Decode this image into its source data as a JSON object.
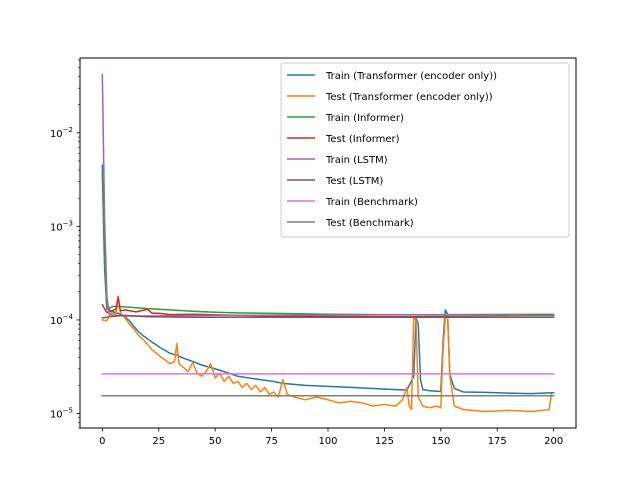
{
  "chart_data": {
    "type": "line",
    "yscale": "log",
    "xlim": [
      -9.9,
      209.9
    ],
    "ylim": [
      7e-06,
      0.063
    ],
    "xticks": [
      0,
      25,
      50,
      75,
      100,
      125,
      150,
      175,
      200
    ],
    "yticks": [
      {
        "value": 1e-05,
        "base": "10",
        "exp": "−5"
      },
      {
        "value": 0.0001,
        "base": "10",
        "exp": "−4"
      },
      {
        "value": 0.001,
        "base": "10",
        "exp": "−3"
      },
      {
        "value": 0.01,
        "base": "10",
        "exp": "−2"
      }
    ],
    "legend_position": "top-right",
    "grid": false,
    "series": [
      {
        "name": "Train (Transformer (encoder only))",
        "color": "#1f77b4",
        "points": [
          [
            0,
            0.0045
          ],
          [
            1,
            0.00045
          ],
          [
            2,
            0.00014
          ],
          [
            3,
            0.000128
          ],
          [
            5,
            0.000122
          ],
          [
            8,
            0.000115
          ],
          [
            10,
            0.000108
          ],
          [
            12,
            9.8e-05
          ],
          [
            14,
            8.5e-05
          ],
          [
            16,
            7.5e-05
          ],
          [
            18,
            6.8e-05
          ],
          [
            20,
            6.3e-05
          ],
          [
            22,
            5.8e-05
          ],
          [
            24,
            5.4e-05
          ],
          [
            26,
            5e-05
          ],
          [
            28,
            4.7e-05
          ],
          [
            30,
            4.4e-05
          ],
          [
            33,
            4.2e-05
          ],
          [
            36,
            3.9e-05
          ],
          [
            40,
            3.6e-05
          ],
          [
            44,
            3.3e-05
          ],
          [
            48,
            3.1e-05
          ],
          [
            52,
            2.9e-05
          ],
          [
            56,
            2.7e-05
          ],
          [
            60,
            2.5e-05
          ],
          [
            65,
            2.4e-05
          ],
          [
            70,
            2.3e-05
          ],
          [
            76,
            2.2e-05
          ],
          [
            80,
            2.1e-05
          ],
          [
            90,
            2e-05
          ],
          [
            100,
            1.95e-05
          ],
          [
            110,
            1.9e-05
          ],
          [
            120,
            1.85e-05
          ],
          [
            130,
            1.8e-05
          ],
          [
            135,
            1.78e-05
          ],
          [
            138,
            2.5e-05
          ],
          [
            139,
            0.000105
          ],
          [
            140,
            9e-05
          ],
          [
            141,
            2.3e-05
          ],
          [
            142,
            1.8e-05
          ],
          [
            145,
            1.75e-05
          ],
          [
            150,
            1.72e-05
          ],
          [
            151,
            6e-05
          ],
          [
            152,
            0.000128
          ],
          [
            153,
            0.000115
          ],
          [
            154,
            2.6e-05
          ],
          [
            156,
            1.85e-05
          ],
          [
            160,
            1.7e-05
          ],
          [
            170,
            1.68e-05
          ],
          [
            180,
            1.65e-05
          ],
          [
            190,
            1.63e-05
          ],
          [
            200,
            1.67e-05
          ]
        ]
      },
      {
        "name": "Test (Transformer (encoder only))",
        "color": "#ff7f0e",
        "points": [
          [
            0,
            0.0001
          ],
          [
            2,
            9.8e-05
          ],
          [
            4,
            0.00012
          ],
          [
            6,
            0.000115
          ],
          [
            7,
            0.00018
          ],
          [
            8,
            0.00012
          ],
          [
            10,
            0.000105
          ],
          [
            12,
            9e-05
          ],
          [
            14,
            8e-05
          ],
          [
            16,
            6.8e-05
          ],
          [
            18,
            6.2e-05
          ],
          [
            20,
            5.5e-05
          ],
          [
            22,
            4.8e-05
          ],
          [
            24,
            4.4e-05
          ],
          [
            26,
            4e-05
          ],
          [
            28,
            3.7e-05
          ],
          [
            30,
            3.4e-05
          ],
          [
            32,
            3.6e-05
          ],
          [
            33,
            5.6e-05
          ],
          [
            34,
            3.4e-05
          ],
          [
            36,
            3.1e-05
          ],
          [
            38,
            2.8e-05
          ],
          [
            40,
            3.5e-05
          ],
          [
            42,
            2.7e-05
          ],
          [
            44,
            2.5e-05
          ],
          [
            46,
            2.8e-05
          ],
          [
            48,
            3.4e-05
          ],
          [
            50,
            2.4e-05
          ],
          [
            52,
            2.7e-05
          ],
          [
            54,
            2.2e-05
          ],
          [
            56,
            2.5e-05
          ],
          [
            58,
            2.1e-05
          ],
          [
            60,
            2.2e-05
          ],
          [
            62,
            1.9e-05
          ],
          [
            64,
            2.1e-05
          ],
          [
            66,
            1.8e-05
          ],
          [
            68,
            2e-05
          ],
          [
            70,
            1.7e-05
          ],
          [
            72,
            1.9e-05
          ],
          [
            74,
            1.6e-05
          ],
          [
            76,
            1.7e-05
          ],
          [
            78,
            1.5e-05
          ],
          [
            80,
            2.3e-05
          ],
          [
            82,
            1.6e-05
          ],
          [
            85,
            1.5e-05
          ],
          [
            90,
            1.4e-05
          ],
          [
            95,
            1.5e-05
          ],
          [
            100,
            1.4e-05
          ],
          [
            105,
            1.3e-05
          ],
          [
            110,
            1.35e-05
          ],
          [
            115,
            1.3e-05
          ],
          [
            120,
            1.2e-05
          ],
          [
            125,
            1.25e-05
          ],
          [
            130,
            1.2e-05
          ],
          [
            133,
            1.4e-05
          ],
          [
            135,
            1.9e-05
          ],
          [
            136,
            1.2e-05
          ],
          [
            137,
            1.1e-05
          ],
          [
            138,
            0.000105
          ],
          [
            139,
            0.0001
          ],
          [
            140,
            1.5e-05
          ],
          [
            142,
            1.2e-05
          ],
          [
            145,
            1.15e-05
          ],
          [
            148,
            1.2e-05
          ],
          [
            150,
            1.15e-05
          ],
          [
            151,
            5e-05
          ],
          [
            152,
            0.000105
          ],
          [
            153,
            0.000112
          ],
          [
            154,
            2.5e-05
          ],
          [
            156,
            1.2e-05
          ],
          [
            160,
            1.1e-05
          ],
          [
            170,
            1.05e-05
          ],
          [
            180,
            1.08e-05
          ],
          [
            190,
            1.05e-05
          ],
          [
            195,
            1.08e-05
          ],
          [
            198,
            1.1e-05
          ],
          [
            199,
            1.6e-05
          ]
        ]
      },
      {
        "name": "Train (Informer)",
        "color": "#2ca02c",
        "points": [
          [
            0,
            0.00375
          ],
          [
            1,
            0.00035
          ],
          [
            2,
            0.00013
          ],
          [
            5,
            0.00014
          ],
          [
            10,
            0.000138
          ],
          [
            20,
            0.000132
          ],
          [
            30,
            0.000128
          ],
          [
            40,
            0.000124
          ],
          [
            50,
            0.000121
          ],
          [
            60,
            0.000119
          ],
          [
            80,
            0.000117
          ],
          [
            100,
            0.000115
          ],
          [
            150,
            0.000113
          ],
          [
            200,
            0.000112
          ]
        ]
      },
      {
        "name": "Test (Informer)",
        "color": "#d62728",
        "points": [
          [
            0,
            0.000145
          ],
          [
            2,
            0.00012
          ],
          [
            4,
            0.000125
          ],
          [
            6,
            0.00013
          ],
          [
            7,
            0.000175
          ],
          [
            8,
            0.000125
          ],
          [
            10,
            0.000128
          ],
          [
            15,
            0.000122
          ],
          [
            20,
            0.00013
          ],
          [
            22,
            0.000118
          ],
          [
            25,
            0.000118
          ],
          [
            30,
            0.000114
          ],
          [
            40,
            0.000115
          ],
          [
            60,
            0.000112
          ],
          [
            80,
            0.00011
          ],
          [
            100,
            0.000109
          ],
          [
            150,
            0.000108
          ],
          [
            200,
            0.000107
          ]
        ]
      },
      {
        "name": "Train (LSTM)",
        "color": "#9467bd",
        "points": [
          [
            0,
            0.042
          ],
          [
            1,
            0.0012
          ],
          [
            2,
            0.00018
          ],
          [
            3,
            0.000115
          ],
          [
            5,
            0.000112
          ],
          [
            10,
            0.00011
          ],
          [
            20,
            0.00011
          ],
          [
            50,
            0.000112
          ],
          [
            100,
            0.000113
          ],
          [
            150,
            0.000114
          ],
          [
            200,
            0.000115
          ]
        ]
      },
      {
        "name": "Test (LSTM)",
        "color": "#8c564b",
        "points": [
          [
            0,
            0.000105
          ],
          [
            3,
            0.000108
          ],
          [
            10,
            0.000112
          ],
          [
            20,
            0.000108
          ],
          [
            40,
            0.000107
          ],
          [
            60,
            0.000107
          ],
          [
            100,
            0.000107
          ],
          [
            150,
            0.000107
          ],
          [
            200,
            0.000107
          ]
        ]
      },
      {
        "name": "Train (Benchmark)",
        "color": "#e377c2",
        "points": [
          [
            0,
            2.65e-05
          ],
          [
            200,
            2.65e-05
          ]
        ]
      },
      {
        "name": "Test (Benchmark)",
        "color": "#7f7f7f",
        "points": [
          [
            0,
            1.55e-05
          ],
          [
            200,
            1.55e-05
          ]
        ]
      }
    ]
  }
}
